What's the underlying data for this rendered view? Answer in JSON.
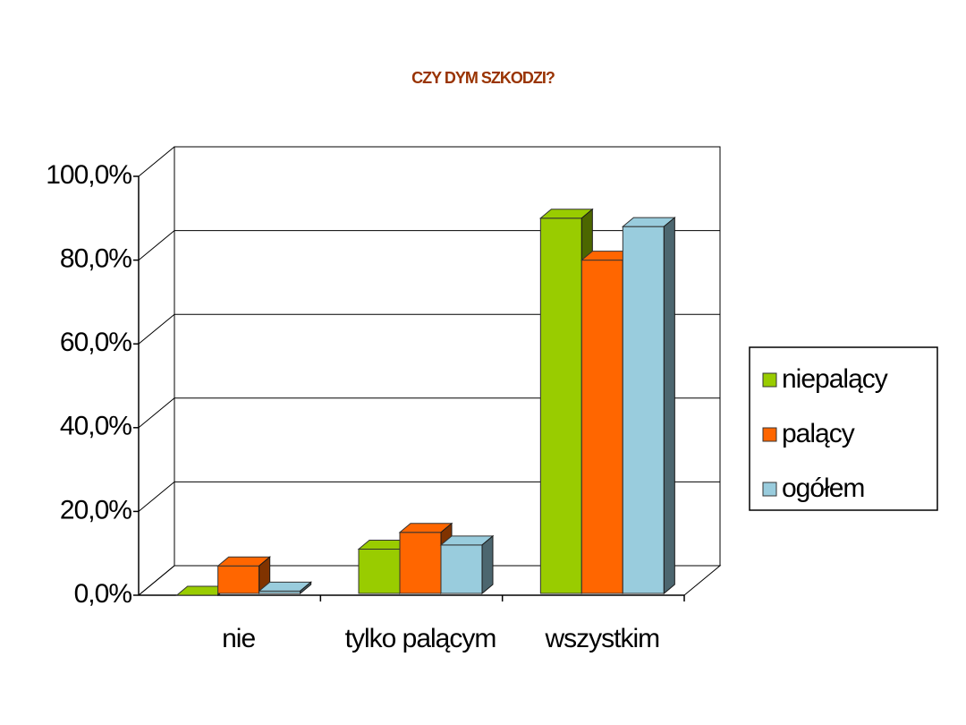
{
  "chart_data": {
    "type": "bar3d",
    "title": "CZY DYM SZKODZI?",
    "categories": [
      "nie",
      "tylko palącym",
      "wszystkim"
    ],
    "series": [
      {
        "name": "niepalący",
        "color": "#99cc00",
        "values": [
          0,
          11,
          90
        ]
      },
      {
        "name": "palący",
        "color": "#ff6600",
        "values": [
          7,
          15,
          80
        ]
      },
      {
        "name": "ogółem",
        "color": "#99ccdd",
        "values": [
          1,
          12,
          88
        ]
      }
    ],
    "ylim": [
      0,
      100
    ],
    "yticks": [
      {
        "value": 0,
        "label": "0,0%"
      },
      {
        "value": 20,
        "label": "20,0%"
      },
      {
        "value": 40,
        "label": "40,0%"
      },
      {
        "value": 60,
        "label": "60,0%"
      },
      {
        "value": 80,
        "label": "80,0%"
      },
      {
        "value": 100,
        "label": "100,0%"
      }
    ],
    "grid": true,
    "legend": "right"
  }
}
